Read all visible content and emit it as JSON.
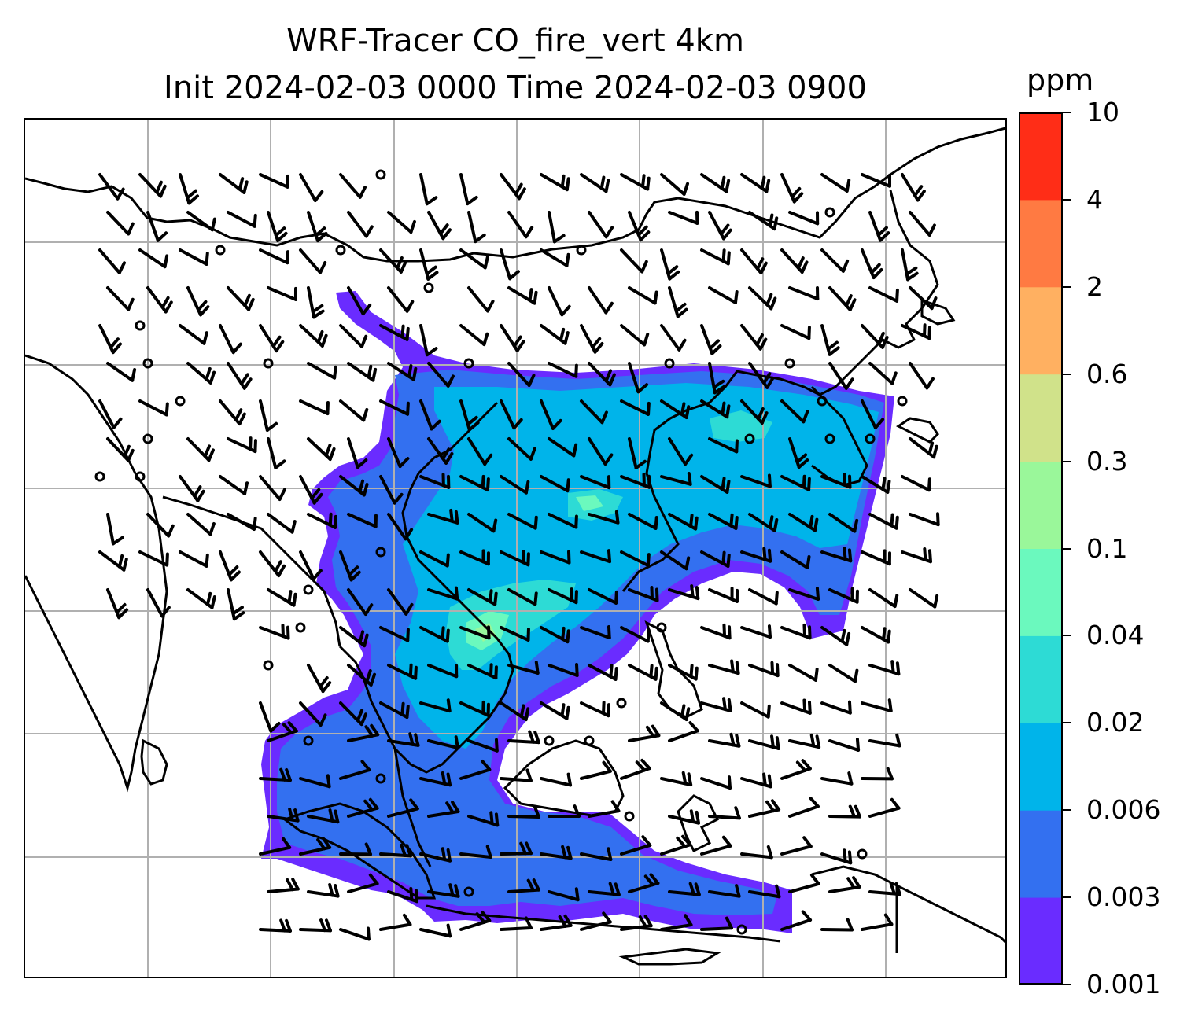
{
  "title": {
    "line1": "WRF-Tracer CO_fire_vert 4km",
    "line2": "Init 2024-02-03 0000 Time 2024-02-03 0900"
  },
  "colorbar": {
    "unit": "ppm",
    "levels": [
      "0.001",
      "0.003",
      "0.006",
      "0.02",
      "0.04",
      "0.1",
      "0.3",
      "0.6",
      "2",
      "4",
      "10"
    ],
    "colors": [
      "#6a2cff",
      "#3370f0",
      "#00b4ea",
      "#2ddbd5",
      "#6bf9be",
      "#9af79a",
      "#d0e28a",
      "#ffb061",
      "#ff7a42",
      "#ff2d17"
    ]
  },
  "map": {
    "gridlines": true,
    "gridline_color": "#b0b0b0",
    "coast_color": "#000000",
    "barb_color": "#000000"
  }
}
